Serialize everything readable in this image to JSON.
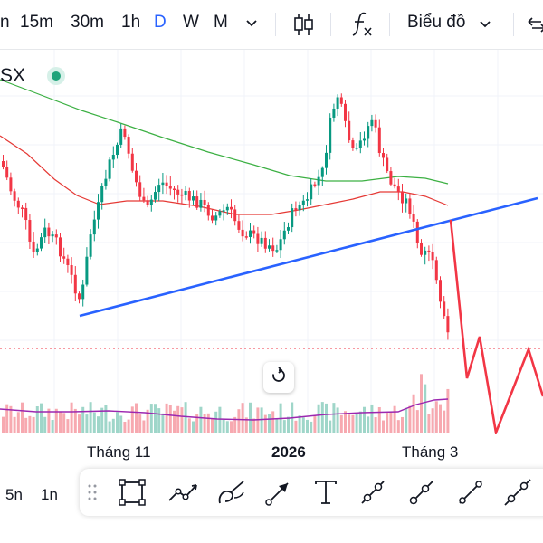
{
  "toolbar": {
    "timeframes": [
      "n",
      "15m",
      "30m",
      "1h",
      "D",
      "W",
      "M"
    ],
    "active_timeframe": "D",
    "chart_type_label": "Biểu đồ"
  },
  "symbol": "SX",
  "time_axis": {
    "labels": [
      "Tháng 11",
      "2026",
      "Tháng 3"
    ]
  },
  "range_buttons": [
    "5n",
    "1n"
  ],
  "colors": {
    "up": "#089981",
    "down": "#f23645",
    "trendline": "#2962ff",
    "ma_long": "#3cb043",
    "ma_short": "#e53935",
    "volume_avg": "#9c27b0",
    "accent": "#2962ff"
  },
  "icons": {
    "timeframe_dropdown": "chevron-down-icon",
    "candles": "candlestick-icon",
    "indicators": "fx-icon",
    "chart_type_dropdown": "chevron-down-icon",
    "compare": "arrows-icon",
    "drawing_tools": [
      "drag-handle-icon",
      "rectangle-tool-icon",
      "path-tool-icon",
      "brush-tool-icon",
      "arrow-tool-icon",
      "text-tool-icon",
      "ray-tool-icon",
      "info-line-tool-icon",
      "trend-line-tool-icon",
      "extended-line-tool-icon"
    ]
  }
}
